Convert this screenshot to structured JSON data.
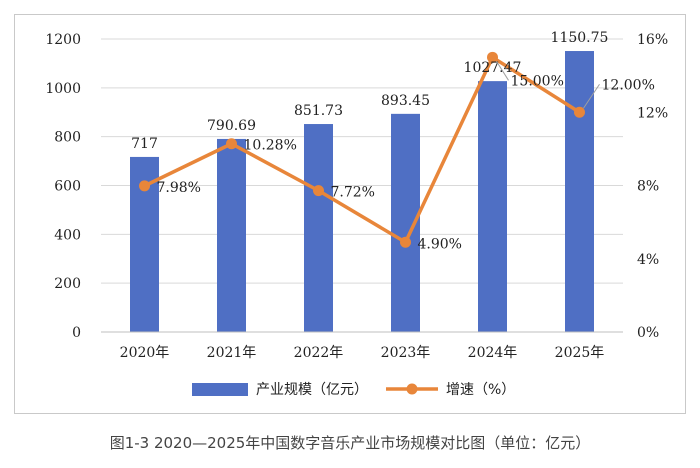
{
  "caption": "图1-3 2020—2025年中国数字音乐产业市场规模对比图（单位：亿元）",
  "colors": {
    "bar": "#4f6fc4",
    "line": "#e8863a",
    "grid": "#d9d9d9",
    "text": "#222222"
  },
  "chart_data": {
    "type": "bar",
    "categories": [
      "2020年",
      "2021年",
      "2022年",
      "2023年",
      "2024年",
      "2025年"
    ],
    "series": [
      {
        "name": "产业规模（亿元）",
        "type": "bar",
        "axis": "left",
        "values": [
          717,
          790.69,
          851.73,
          893.45,
          1027.47,
          1150.75
        ],
        "labels": [
          "717",
          "790.69",
          "851.73",
          "893.45",
          "1027.47",
          "1150.75"
        ]
      },
      {
        "name": "增速（%）",
        "type": "line",
        "axis": "right",
        "values": [
          7.98,
          10.28,
          7.72,
          4.9,
          15.0,
          12.0
        ],
        "labels": [
          "7.98%",
          "10.28%",
          "7.72%",
          "4.90%",
          "15.00%",
          "12.00%"
        ]
      }
    ],
    "y_left": {
      "ylim": [
        0,
        1200
      ],
      "ticks": [
        "0",
        "200",
        "400",
        "600",
        "800",
        "1000",
        "1200"
      ]
    },
    "y_right": {
      "ylim": [
        0,
        16
      ],
      "ticks": [
        "0%",
        "4%",
        "8%",
        "12%",
        "16%"
      ]
    },
    "grid": true,
    "legend": "bottom"
  }
}
